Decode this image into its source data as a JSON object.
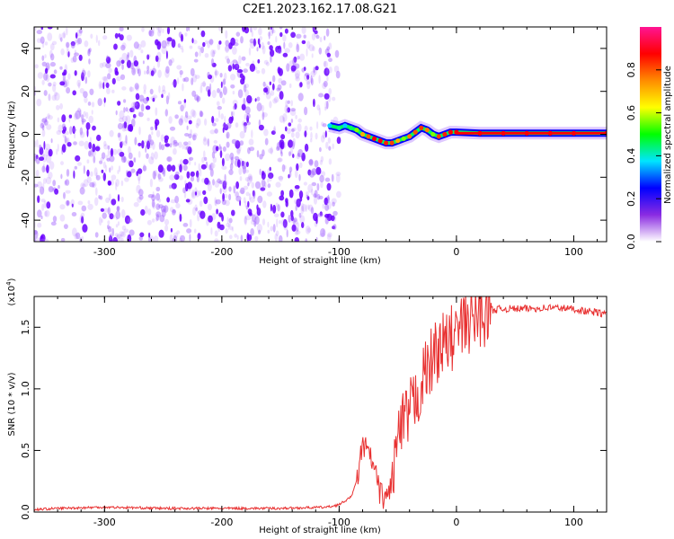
{
  "title": "C2E1.2023.162.17.08.G21",
  "chart_data": [
    {
      "type": "heatmap",
      "xlabel": "Height of straight line (km)",
      "ylabel": "Frequency (Hz)",
      "xlim": [
        -360,
        128
      ],
      "ylim": [
        -50,
        50
      ],
      "xticks": [
        -300,
        -200,
        -100,
        0,
        100
      ],
      "yticks": [
        -40,
        -20,
        0,
        20,
        40
      ],
      "colorbar": {
        "label": "Normalized spectral amplitude",
        "range": [
          0,
          1
        ],
        "ticks": [
          "0.0",
          "0.2",
          "0.4",
          "0.6",
          "0.8"
        ],
        "colors": [
          "#ffffff",
          "#8a2be2",
          "#0000ff",
          "#00e5ff",
          "#00ff00",
          "#ffff00",
          "#ff8c00",
          "#ff0000",
          "#ff1493"
        ]
      },
      "noise_region": {
        "x_from": -360,
        "x_to": -100,
        "color": "#7a00ff"
      },
      "signal_trace": {
        "x": [
          -108,
          -100,
          -95,
          -90,
          -85,
          -80,
          -75,
          -70,
          -65,
          -60,
          -55,
          -50,
          -45,
          -40,
          -35,
          -30,
          -25,
          -20,
          -15,
          -10,
          -5,
          0,
          20,
          40,
          60,
          80,
          100,
          128
        ],
        "y": [
          4,
          3,
          4,
          3,
          2,
          0,
          -1,
          -2,
          -3,
          -4,
          -4,
          -3,
          -2,
          -1,
          1,
          3,
          2,
          0,
          -1,
          0,
          1,
          1,
          0.5,
          0.5,
          0.5,
          0.5,
          0.5,
          0.5
        ],
        "colors": [
          "#00d0ff",
          "#00ff80",
          "#00d0ff",
          "#00ff60",
          "#80ff00",
          "#ffb000",
          "#ff6000",
          "#ff0000",
          "#ff0000",
          "#ff2000",
          "#ff4000",
          "#ffb000",
          "#80ff00",
          "#ff8000",
          "#ff5000",
          "#ff3000",
          "#ff8000",
          "#80ff00",
          "#ff4000",
          "#ff2000",
          "#ff0000",
          "#ff0000",
          "#ff0000",
          "#ff0000",
          "#ff0000",
          "#ff0000",
          "#ff0000",
          "#ff0000"
        ]
      }
    },
    {
      "type": "line",
      "xlabel": "Height of straight line (km)",
      "ylabel": "SNR (10 * v/v)",
      "multiplier_label": "(x10",
      "multiplier_exp": "4",
      "multiplier_close": ")",
      "xlim": [
        -360,
        128
      ],
      "ylim": [
        0,
        1.75
      ],
      "xticks": [
        -300,
        -200,
        -100,
        0,
        100
      ],
      "yticks": [
        "0.0",
        "0.5",
        "1.0",
        "1.5"
      ],
      "ytick_values": [
        0,
        0.5,
        1.0,
        1.5
      ],
      "series": [
        {
          "color": "#e83030",
          "x": [
            -360,
            -340,
            -300,
            -250,
            -200,
            -150,
            -110,
            -100,
            -90,
            -85,
            -80,
            -75,
            -70,
            -65,
            -60,
            -55,
            -50,
            -45,
            -40,
            -35,
            -30,
            -25,
            -20,
            -15,
            -10,
            -5,
            0,
            5,
            10,
            15,
            20,
            25,
            30,
            40,
            60,
            80,
            100,
            110,
            120,
            128
          ],
          "y": [
            0.02,
            0.03,
            0.04,
            0.03,
            0.03,
            0.03,
            0.04,
            0.06,
            0.12,
            0.25,
            0.55,
            0.48,
            0.35,
            0.15,
            0.1,
            0.25,
            0.6,
            0.7,
            0.8,
            0.9,
            1.05,
            1.15,
            1.25,
            1.35,
            1.35,
            1.4,
            1.45,
            1.5,
            1.55,
            1.58,
            1.6,
            1.62,
            1.64,
            1.65,
            1.65,
            1.66,
            1.65,
            1.63,
            1.62,
            1.6
          ]
        }
      ]
    }
  ]
}
